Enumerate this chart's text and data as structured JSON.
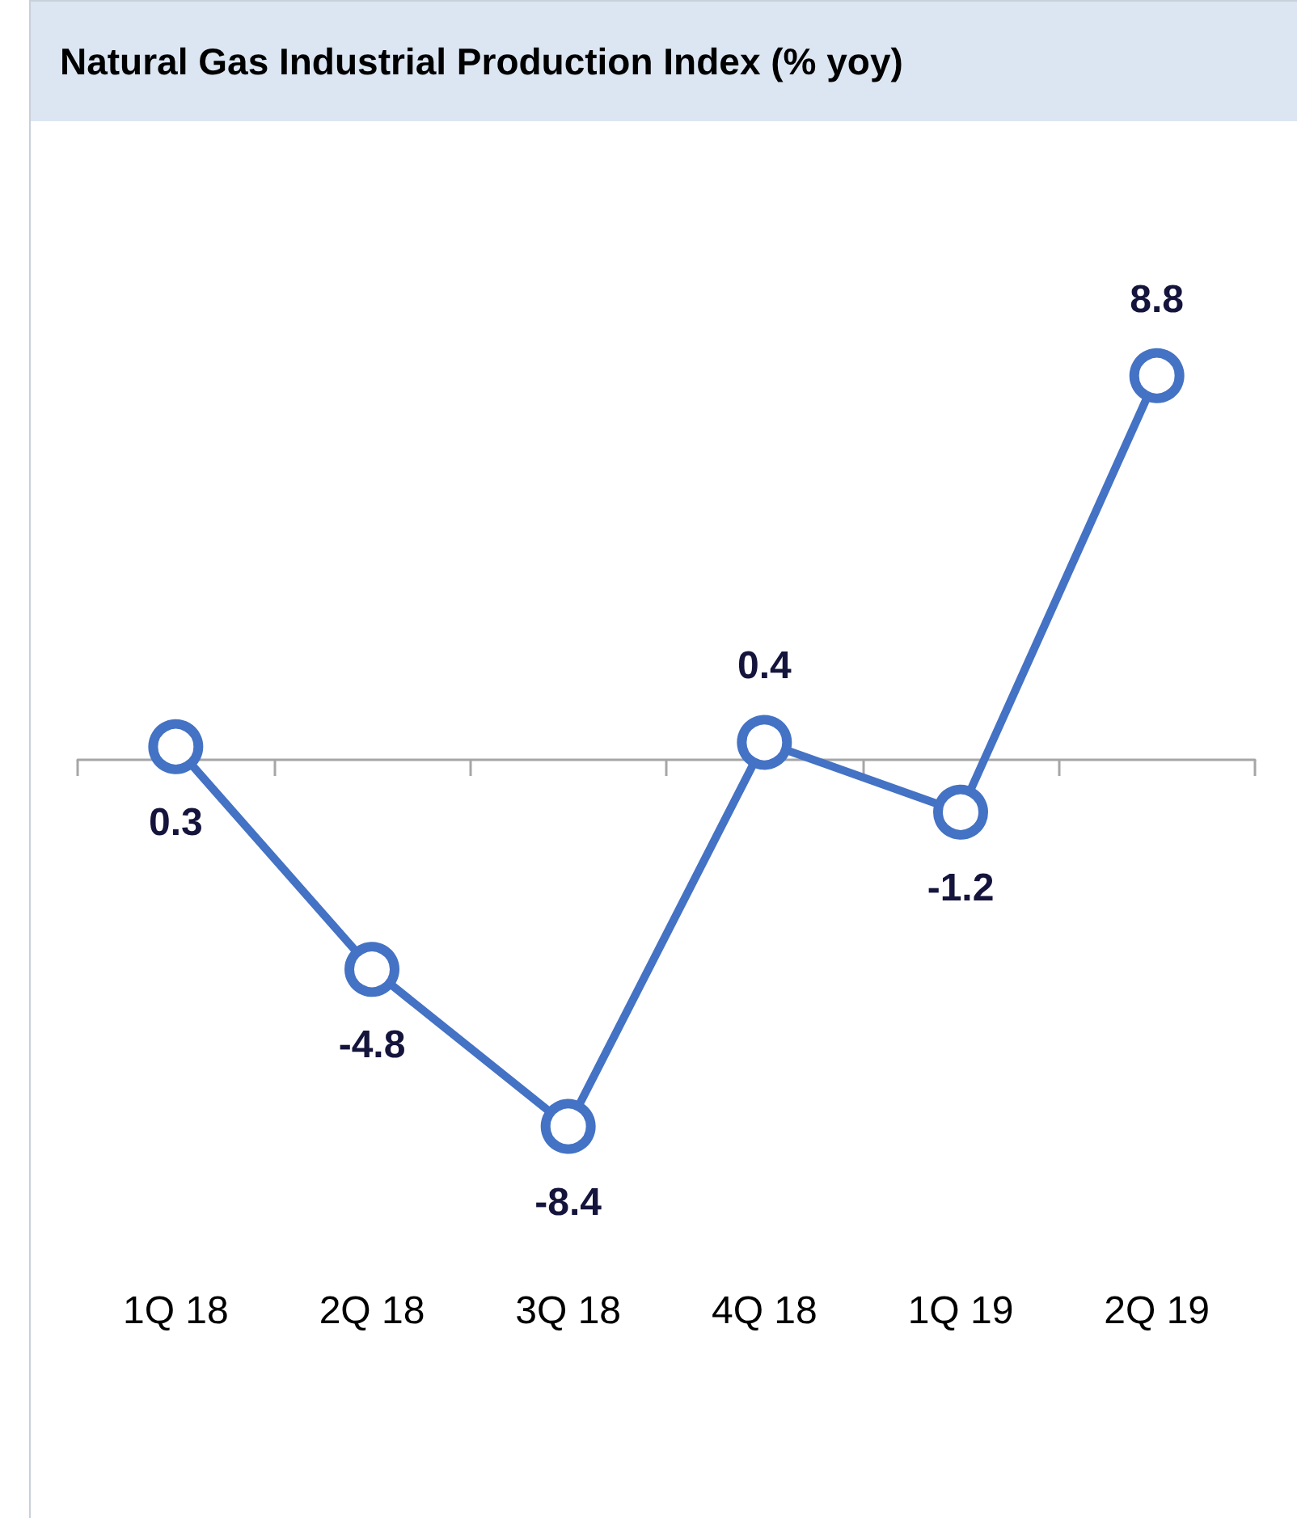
{
  "chart_data": {
    "type": "line",
    "title": "Natural Gas Industrial Production Index (% yoy)",
    "categories": [
      "1Q 18",
      "2Q 18",
      "3Q 18",
      "4Q 18",
      "1Q 19",
      "2Q 19"
    ],
    "series": [
      {
        "color": "#4472c4",
        "values": [
          0.3,
          -4.8,
          -8.4,
          0.4,
          -1.2,
          8.8
        ]
      }
    ],
    "data_labels": true,
    "marker": "circle",
    "line_style": "solid"
  }
}
